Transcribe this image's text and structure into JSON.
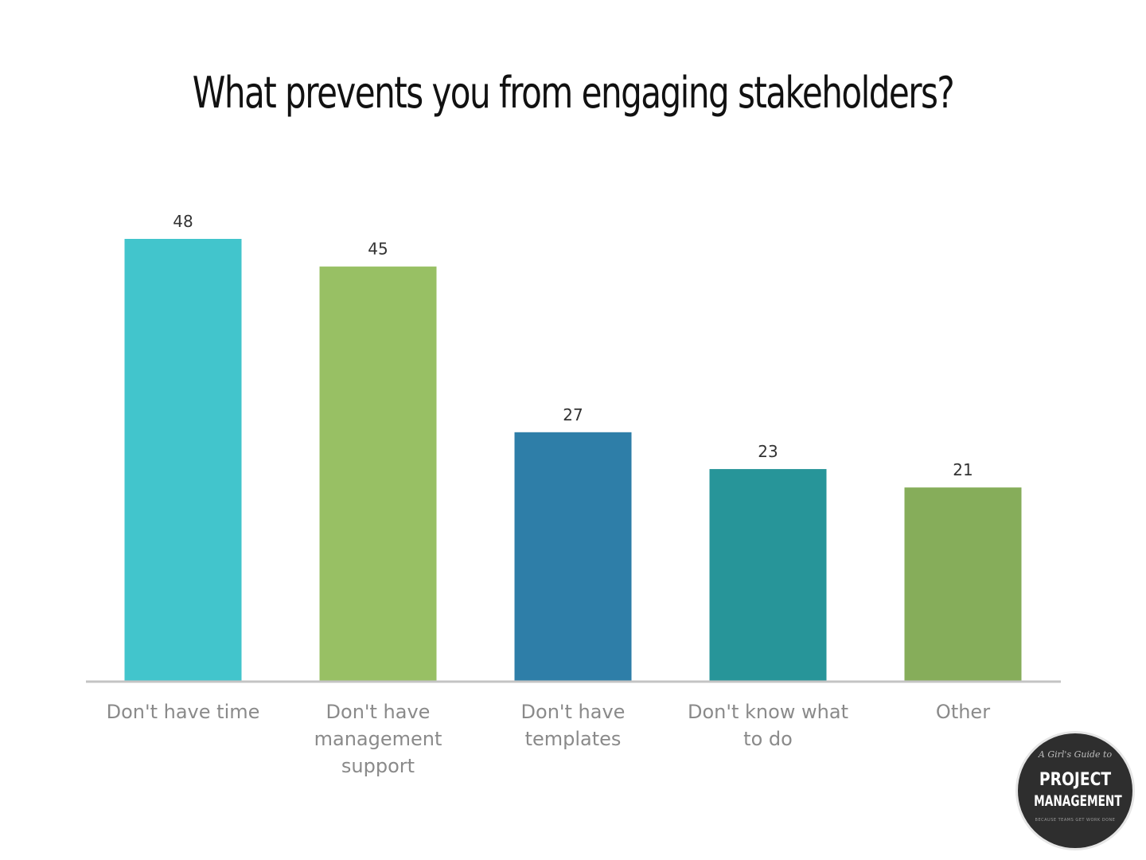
{
  "chart_data": {
    "type": "bar",
    "title": "What prevents you from engaging stakeholders?",
    "categories": [
      [
        "Don't have time"
      ],
      [
        "Don't have",
        "management",
        "support"
      ],
      [
        "Don't have",
        "templates"
      ],
      [
        "Don't know what",
        "to do"
      ],
      [
        "Other"
      ]
    ],
    "values": [
      48,
      45,
      27,
      23,
      21
    ],
    "colors": [
      "#42c5cc",
      "#98c064",
      "#2e7ea8",
      "#279599",
      "#86ad5a"
    ],
    "ylim": [
      0,
      48
    ],
    "grid": false,
    "legend": "none"
  },
  "logo": {
    "script": "A Girl's Guide to",
    "line1": "PROJECT",
    "line2": "MANAGEMENT",
    "tagline": "BECAUSE TEAMS GET WORK DONE"
  }
}
